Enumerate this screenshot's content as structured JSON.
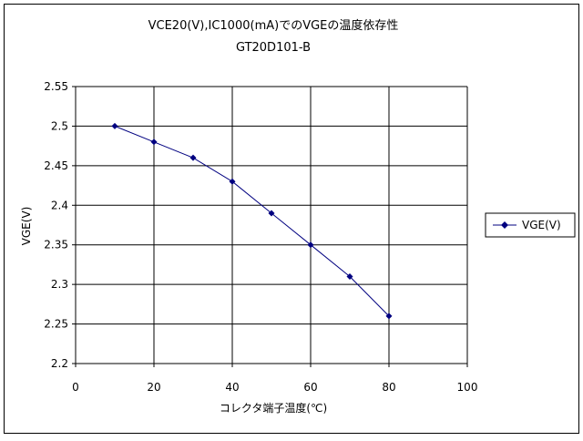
{
  "chart_data": {
    "type": "line",
    "title": "VCE20(V),IC1000(mA)でのVGEの温度依存性",
    "subtitle": "GT20D101-B",
    "xlabel": "コレクタ端子温度(℃)",
    "ylabel": "VGE(V)",
    "xlim": [
      0,
      100
    ],
    "ylim": [
      2.2,
      2.55
    ],
    "x_ticks": [
      "0",
      "20",
      "40",
      "60",
      "80",
      "100"
    ],
    "y_ticks": [
      "2.2",
      "2.25",
      "2.3",
      "2.35",
      "2.4",
      "2.45",
      "2.5",
      "2.55"
    ],
    "x_tick_values": [
      0,
      20,
      40,
      60,
      80,
      100
    ],
    "y_tick_values": [
      2.2,
      2.25,
      2.3,
      2.35,
      2.4,
      2.45,
      2.5,
      2.55
    ],
    "grid": true,
    "legend_position": "right",
    "series": [
      {
        "name": "VGE(V)",
        "color": "#000080",
        "marker": "diamond",
        "x": [
          10,
          20,
          30,
          40,
          50,
          60,
          70,
          80
        ],
        "y": [
          2.5,
          2.48,
          2.46,
          2.43,
          2.39,
          2.35,
          2.31,
          2.26
        ]
      }
    ]
  }
}
